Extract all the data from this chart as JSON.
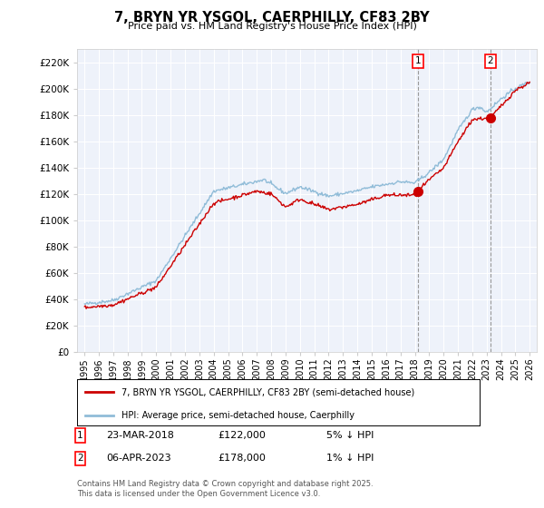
{
  "title": "7, BRYN YR YSGOL, CAERPHILLY, CF83 2BY",
  "subtitle": "Price paid vs. HM Land Registry's House Price Index (HPI)",
  "ylabel_ticks": [
    "£0",
    "£20K",
    "£40K",
    "£60K",
    "£80K",
    "£100K",
    "£120K",
    "£140K",
    "£160K",
    "£180K",
    "£200K",
    "£220K"
  ],
  "ytick_values": [
    0,
    20000,
    40000,
    60000,
    80000,
    100000,
    120000,
    140000,
    160000,
    180000,
    200000,
    220000
  ],
  "ylim": [
    0,
    230000
  ],
  "sale1_date": "23-MAR-2018",
  "sale1_price": 122000,
  "sale1_hpi": "5% ↓ HPI",
  "sale1_x": 2018.22,
  "sale1_y": 122000,
  "sale2_date": "06-APR-2023",
  "sale2_price": 178000,
  "sale2_hpi": "1% ↓ HPI",
  "sale2_x": 2023.27,
  "sale2_y": 178000,
  "legend_label_red": "7, BRYN YR YSGOL, CAERPHILLY, CF83 2BY (semi-detached house)",
  "legend_label_blue": "HPI: Average price, semi-detached house, Caerphilly",
  "footer": "Contains HM Land Registry data © Crown copyright and database right 2025.\nThis data is licensed under the Open Government Licence v3.0.",
  "background_color": "#ffffff",
  "plot_bg_color": "#eef2fa",
  "grid_color": "#ffffff",
  "red_color": "#cc0000",
  "blue_color": "#90bcd8",
  "dashed_line_color": "#999999",
  "xtick_years": [
    1995,
    1996,
    1997,
    1998,
    1999,
    2000,
    2001,
    2002,
    2003,
    2004,
    2005,
    2006,
    2007,
    2008,
    2009,
    2010,
    2011,
    2012,
    2013,
    2014,
    2015,
    2016,
    2017,
    2018,
    2019,
    2020,
    2021,
    2022,
    2023,
    2024,
    2025,
    2026
  ]
}
